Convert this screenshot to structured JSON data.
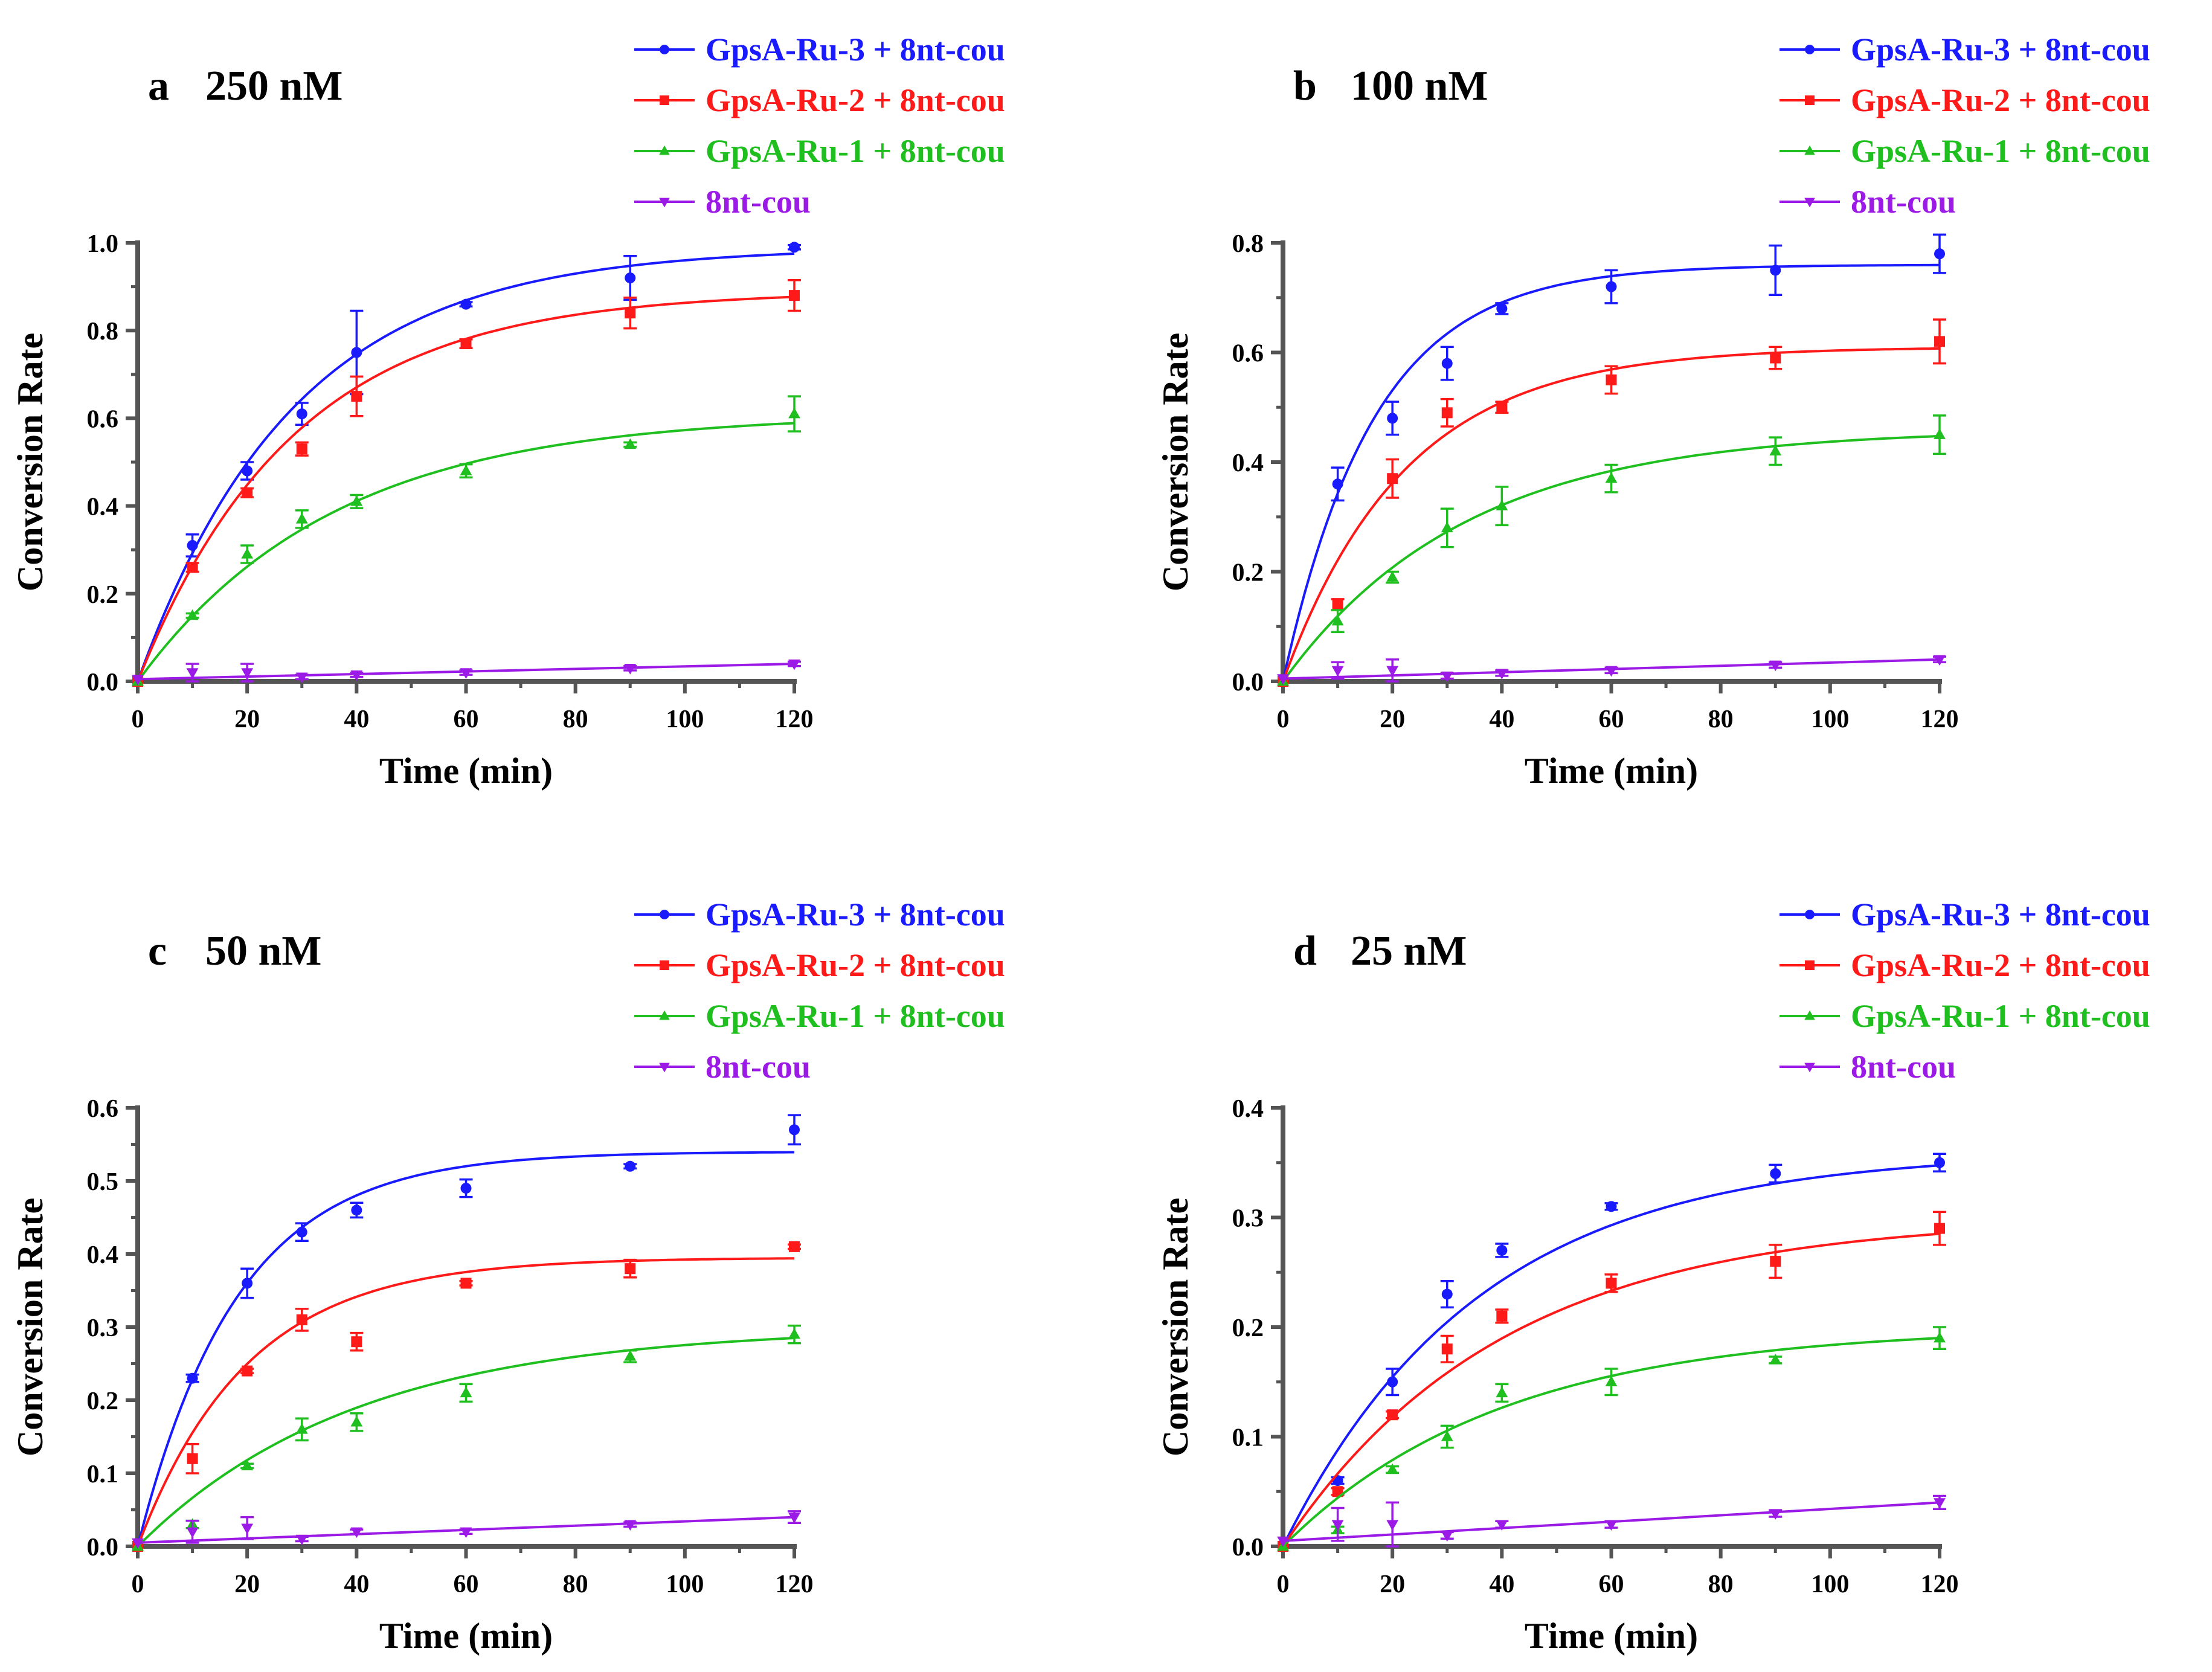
{
  "chart_data": [
    {
      "type": "scatter",
      "panel_label": "a",
      "title": "250 nM",
      "xlabel": "Time (min)",
      "ylabel": "Conversion Rate",
      "xlim": [
        0,
        120
      ],
      "ylim": [
        0,
        1.0
      ],
      "xticks": [
        0,
        20,
        40,
        60,
        80,
        100,
        120
      ],
      "xtick_labels": [
        "0",
        "20",
        "40",
        "60",
        "80",
        "100",
        "120"
      ],
      "yticks": [
        0,
        0.2,
        0.4,
        0.6,
        0.8,
        1.0
      ],
      "ytick_labels": [
        "0.0",
        "0.2",
        "0.4",
        "0.6",
        "0.8",
        "1.0"
      ],
      "legend_position": "top-right",
      "x": [
        0,
        10,
        20,
        30,
        40,
        60,
        90,
        120
      ],
      "series": [
        {
          "name": "GpsA-Ru-3 + 8nt-cou",
          "color": "#1a1aff",
          "marker": "circle",
          "values": [
            0,
            0.31,
            0.48,
            0.61,
            0.75,
            0.86,
            0.92,
            0.99
          ],
          "errors": [
            0,
            0.025,
            0.02,
            0.025,
            0.095,
            0.005,
            0.05,
            0.005
          ],
          "fit": {
            "plateau": 0.99,
            "k": 0.035
          }
        },
        {
          "name": "GpsA-Ru-2 + 8nt-cou",
          "color": "#ff1a1a",
          "marker": "square",
          "values": [
            0,
            0.26,
            0.43,
            0.53,
            0.65,
            0.77,
            0.84,
            0.88
          ],
          "errors": [
            0,
            0.01,
            0.01,
            0.015,
            0.045,
            0.01,
            0.035,
            0.035
          ],
          "fit": {
            "plateau": 0.89,
            "k": 0.035
          }
        },
        {
          "name": "GpsA-Ru-1 + 8nt-cou",
          "color": "#1fbf1f",
          "marker": "triangle",
          "values": [
            0,
            0.15,
            0.29,
            0.37,
            0.41,
            0.48,
            0.54,
            0.61
          ],
          "errors": [
            0,
            0.005,
            0.02,
            0.02,
            0.015,
            0.015,
            0.005,
            0.04
          ],
          "fit": {
            "plateau": 0.61,
            "k": 0.028
          }
        },
        {
          "name": "8nt-cou",
          "color": "#9b1ae6",
          "marker": "triangle-down",
          "values": [
            0.005,
            0.02,
            0.02,
            0.01,
            0.015,
            0.02,
            0.03,
            0.04
          ],
          "errors": [
            0,
            0.02,
            0.02,
            0.005,
            0.005,
            0.005,
            0.005,
            0.005
          ],
          "fit": {
            "line": [
              0.005,
              0.04
            ]
          }
        }
      ]
    },
    {
      "type": "scatter",
      "panel_label": "b",
      "title": "100 nM",
      "xlabel": "Time (min)",
      "ylabel": "Conversion Rate",
      "xlim": [
        0,
        120
      ],
      "ylim": [
        0,
        0.8
      ],
      "xticks": [
        0,
        20,
        40,
        60,
        80,
        100,
        120
      ],
      "xtick_labels": [
        "0",
        "20",
        "40",
        "60",
        "80",
        "100",
        "120"
      ],
      "yticks": [
        0,
        0.2,
        0.4,
        0.6,
        0.8
      ],
      "ytick_labels": [
        "0.0",
        "0.2",
        "0.4",
        "0.6",
        "0.8"
      ],
      "legend_position": "top-right",
      "x": [
        0,
        10,
        20,
        30,
        40,
        60,
        90,
        120
      ],
      "series": [
        {
          "name": "GpsA-Ru-3 + 8nt-cou",
          "color": "#1a1aff",
          "marker": "circle",
          "values": [
            0,
            0.36,
            0.48,
            0.58,
            0.68,
            0.72,
            0.75,
            0.78
          ],
          "errors": [
            0,
            0.03,
            0.03,
            0.03,
            0.01,
            0.03,
            0.045,
            0.035
          ],
          "fit": {
            "plateau": 0.76,
            "k": 0.06
          }
        },
        {
          "name": "GpsA-Ru-2 + 8nt-cou",
          "color": "#ff1a1a",
          "marker": "square",
          "values": [
            0,
            0.14,
            0.37,
            0.49,
            0.5,
            0.55,
            0.59,
            0.62
          ],
          "errors": [
            0,
            0.01,
            0.035,
            0.025,
            0.01,
            0.025,
            0.02,
            0.04
          ],
          "fit": {
            "plateau": 0.61,
            "k": 0.045
          }
        },
        {
          "name": "GpsA-Ru-1 + 8nt-cou",
          "color": "#1fbf1f",
          "marker": "triangle",
          "values": [
            0,
            0.11,
            0.19,
            0.28,
            0.32,
            0.37,
            0.42,
            0.45
          ],
          "errors": [
            0,
            0.02,
            0.01,
            0.035,
            0.035,
            0.025,
            0.025,
            0.035
          ],
          "fit": {
            "plateau": 0.46,
            "k": 0.03
          }
        },
        {
          "name": "8nt-cou",
          "color": "#9b1ae6",
          "marker": "triangle-down",
          "values": [
            0.005,
            0.02,
            0.02,
            0.01,
            0.015,
            0.02,
            0.03,
            0.04
          ],
          "errors": [
            0,
            0.015,
            0.02,
            0.005,
            0.005,
            0.005,
            0.005,
            0.005
          ],
          "fit": {
            "line": [
              0.005,
              0.04
            ]
          }
        }
      ]
    },
    {
      "type": "scatter",
      "panel_label": "c",
      "title": "50 nM",
      "xlabel": "Time (min)",
      "ylabel": "Conversion Rate",
      "xlim": [
        0,
        120
      ],
      "ylim": [
        0,
        0.6
      ],
      "xticks": [
        0,
        20,
        40,
        60,
        80,
        100,
        120
      ],
      "xtick_labels": [
        "0",
        "20",
        "40",
        "60",
        "80",
        "100",
        "120"
      ],
      "yticks": [
        0,
        0.1,
        0.2,
        0.3,
        0.4,
        0.5,
        0.6
      ],
      "ytick_labels": [
        "0.0",
        "0.1",
        "0.2",
        "0.3",
        "0.4",
        "0.5",
        "0.6"
      ],
      "legend_position": "top-right",
      "x": [
        0,
        10,
        20,
        30,
        40,
        60,
        90,
        120
      ],
      "series": [
        {
          "name": "GpsA-Ru-3 + 8nt-cou",
          "color": "#1a1aff",
          "marker": "circle",
          "values": [
            0,
            0.23,
            0.36,
            0.43,
            0.46,
            0.49,
            0.52,
            0.57
          ],
          "errors": [
            0,
            0.005,
            0.02,
            0.012,
            0.01,
            0.012,
            0.003,
            0.02
          ],
          "fit": {
            "plateau": 0.54,
            "k": 0.055
          }
        },
        {
          "name": "GpsA-Ru-2 + 8nt-cou",
          "color": "#ff1a1a",
          "marker": "square",
          "values": [
            0,
            0.12,
            0.24,
            0.31,
            0.28,
            0.36,
            0.38,
            0.41
          ],
          "errors": [
            0,
            0.02,
            0.003,
            0.015,
            0.012,
            0.003,
            0.012,
            0.003
          ],
          "fit": {
            "plateau": 0.395,
            "k": 0.05
          }
        },
        {
          "name": "GpsA-Ru-1 + 8nt-cou",
          "color": "#1fbf1f",
          "marker": "triangle",
          "values": [
            0,
            0.03,
            0.11,
            0.16,
            0.17,
            0.21,
            0.26,
            0.29
          ],
          "errors": [
            0,
            0.005,
            0.003,
            0.015,
            0.012,
            0.012,
            0.008,
            0.012
          ],
          "fit": {
            "plateau": 0.3,
            "k": 0.025
          }
        },
        {
          "name": "8nt-cou",
          "color": "#9b1ae6",
          "marker": "triangle-down",
          "values": [
            0.005,
            0.02,
            0.025,
            0.01,
            0.02,
            0.02,
            0.03,
            0.04
          ],
          "errors": [
            0,
            0.015,
            0.015,
            0.003,
            0.003,
            0.003,
            0.003,
            0.008
          ],
          "fit": {
            "line": [
              0.005,
              0.04
            ]
          }
        }
      ]
    },
    {
      "type": "scatter",
      "panel_label": "d",
      "title": "25 nM",
      "xlabel": "Time (min)",
      "ylabel": "Conversion Rate",
      "xlim": [
        0,
        120
      ],
      "ylim": [
        0,
        0.4
      ],
      "xticks": [
        0,
        20,
        40,
        60,
        80,
        100,
        120
      ],
      "xtick_labels": [
        "0",
        "20",
        "40",
        "60",
        "80",
        "100",
        "120"
      ],
      "yticks": [
        0,
        0.1,
        0.2,
        0.3,
        0.4
      ],
      "ytick_labels": [
        "0.0",
        "0.1",
        "0.2",
        "0.3",
        "0.4"
      ],
      "legend_position": "top-right",
      "x": [
        0,
        10,
        20,
        30,
        40,
        60,
        90,
        120
      ],
      "series": [
        {
          "name": "GpsA-Ru-3 + 8nt-cou",
          "color": "#1a1aff",
          "marker": "circle",
          "values": [
            0,
            0.06,
            0.15,
            0.23,
            0.27,
            0.31,
            0.34,
            0.35
          ],
          "errors": [
            0,
            0.003,
            0.012,
            0.012,
            0.006,
            0.003,
            0.008,
            0.008
          ],
          "fit": {
            "plateau": 0.36,
            "k": 0.028
          }
        },
        {
          "name": "GpsA-Ru-2 + 8nt-cou",
          "color": "#ff1a1a",
          "marker": "square",
          "values": [
            0,
            0.05,
            0.12,
            0.18,
            0.21,
            0.24,
            0.26,
            0.29
          ],
          "errors": [
            0,
            0.003,
            0.003,
            0.012,
            0.006,
            0.008,
            0.015,
            0.015
          ],
          "fit": {
            "plateau": 0.3,
            "k": 0.025
          }
        },
        {
          "name": "GpsA-Ru-1 + 8nt-cou",
          "color": "#1fbf1f",
          "marker": "triangle",
          "values": [
            0,
            0.015,
            0.07,
            0.1,
            0.14,
            0.15,
            0.17,
            0.19
          ],
          "errors": [
            0,
            0.003,
            0.003,
            0.01,
            0.008,
            0.012,
            0.003,
            0.01
          ],
          "fit": {
            "plateau": 0.2,
            "k": 0.025
          }
        },
        {
          "name": "8nt-cou",
          "color": "#9b1ae6",
          "marker": "triangle-down",
          "values": [
            0.005,
            0.02,
            0.02,
            0.01,
            0.02,
            0.02,
            0.03,
            0.04
          ],
          "errors": [
            0,
            0.015,
            0.02,
            0.003,
            0.003,
            0.003,
            0.003,
            0.006
          ],
          "fit": {
            "line": [
              0.005,
              0.04
            ]
          }
        }
      ]
    }
  ]
}
